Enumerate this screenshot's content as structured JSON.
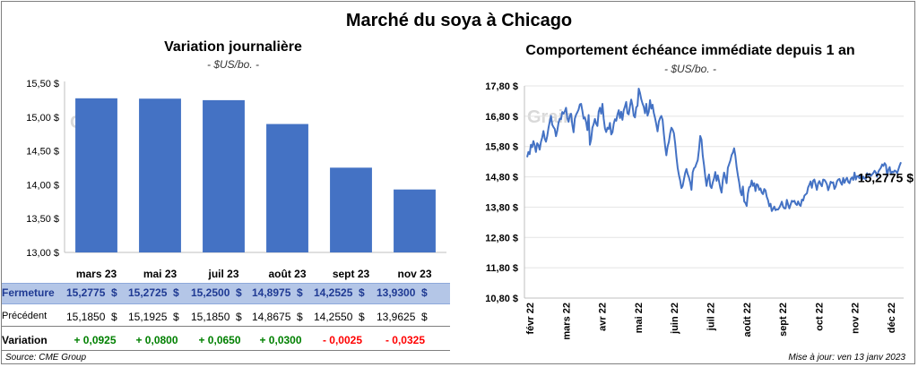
{
  "main_title": "Marché du soya à Chicago",
  "watermark": "Grain",
  "chart_data": [
    {
      "type": "bar",
      "title": "Variation journalière",
      "unit": "- $US/bo. -",
      "categories": [
        "mars 23",
        "mai 23",
        "juil 23",
        "août 23",
        "sept 23",
        "nov 23"
      ],
      "values": [
        15.2775,
        15.2725,
        15.25,
        14.8975,
        14.2525,
        13.93
      ],
      "ylim": [
        13.0,
        15.5
      ],
      "yticks": [
        "13,00 $",
        "13,50 $",
        "14,00 $",
        "14,50 $",
        "15,00 $",
        "15,50 $"
      ],
      "grid": false,
      "color": "#4472c4"
    },
    {
      "type": "line",
      "title": "Comportement  échéance immédiate depuis 1 an",
      "unit": "- $US/bo. -",
      "ylim": [
        10.8,
        17.8
      ],
      "yticks": [
        "10,80 $",
        "11,80 $",
        "12,80 $",
        "13,80 $",
        "14,80 $",
        "15,80 $",
        "16,80 $",
        "17,80 $"
      ],
      "xticks": [
        "févr 22",
        "mars 22",
        "avr 22",
        "mai 22",
        "juin 22",
        "juil 22",
        "août 22",
        "sept 22",
        "oct 22",
        "nov 22",
        "déc 22"
      ],
      "last_value_label": "15,2775 $",
      "color": "#4472c4",
      "values": [
        15.45,
        15.62,
        15.55,
        15.86,
        15.78,
        15.98,
        15.84,
        15.62,
        15.91,
        15.85,
        15.7,
        15.95,
        16.1,
        16.31,
        16.07,
        15.96,
        16.14,
        16.41,
        16.62,
        16.81,
        16.52,
        16.44,
        16.38,
        16.14,
        16.32,
        16.58,
        16.72,
        16.7,
        16.94,
        16.88,
        16.96,
        17.08,
        16.74,
        16.62,
        16.82,
        16.88,
        16.52,
        16.27,
        16.72,
        16.85,
        16.93,
        17.02,
        17.19,
        17.21,
        16.98,
        16.72,
        16.76,
        16.61,
        16.34,
        16.84,
        15.86,
        16.04,
        16.42,
        16.54,
        16.71,
        16.55,
        16.48,
        16.95,
        17.08,
        16.88,
        17.21,
        16.72,
        16.4,
        16.28,
        16.42,
        16.38,
        16.58,
        16.2,
        16.27,
        16.55,
        16.7,
        16.65,
        16.86,
        17.0,
        16.74,
        16.95,
        16.68,
        16.99,
        17.12,
        17.27,
        16.9,
        16.86,
        17.13,
        17.35,
        17.15,
        16.82,
        16.76,
        17.09,
        17.14,
        17.71,
        17.57,
        17.36,
        17.22,
        17.11,
        16.9,
        17.21,
        16.82,
        16.95,
        17.33,
        17.05,
        17.18,
        16.91,
        16.74,
        16.53,
        16.3,
        16.62,
        16.74,
        16.81,
        16.68,
        16.22,
        15.82,
        15.51,
        15.8,
        15.95,
        16.23,
        16.42,
        16.36,
        16.24,
        15.91,
        15.47,
        15.1,
        14.86,
        14.68,
        14.43,
        14.5,
        14.72,
        14.93,
        15.06,
        14.89,
        14.78,
        14.62,
        14.37,
        14.95,
        15.08,
        15.12,
        15.24,
        15.35,
        15.7,
        16.15,
        16.03,
        15.5,
        15.19,
        14.81,
        14.5,
        14.75,
        14.88,
        14.5,
        14.43,
        14.62,
        14.75,
        14.96,
        14.67,
        14.85,
        14.65,
        14.43,
        14.28,
        14.7,
        14.94,
        14.78,
        14.59,
        15.1,
        15.22,
        15.34,
        15.52,
        15.6,
        15.74,
        15.49,
        15.12,
        14.85,
        14.62,
        14.32,
        14.19,
        14.48,
        13.99,
        13.94,
        13.84,
        14.26,
        14.46,
        14.48,
        14.68,
        14.5,
        14.59,
        14.33,
        14.56,
        14.53,
        14.37,
        14.42,
        14.28,
        14.23,
        14.4,
        14.35,
        14.14,
        14.03,
        13.83,
        13.91,
        13.67,
        13.74,
        13.82,
        13.7,
        13.73,
        13.72,
        13.78,
        13.87,
        13.98,
        13.82,
        13.76,
        13.76,
        14.04,
        13.89,
        13.76,
        13.89,
        14.01,
        13.98,
        14.01,
        13.91,
        13.87,
        13.99,
        13.88,
        13.84,
        14.05,
        14.02,
        14.18,
        14.22,
        14.26,
        14.45,
        14.54,
        14.65,
        14.44,
        14.67,
        14.71,
        14.55,
        14.37,
        14.58,
        14.66,
        14.56,
        14.49,
        14.71,
        14.7,
        14.64,
        14.55,
        14.36,
        14.48,
        14.64,
        14.6,
        14.62,
        14.4,
        14.48,
        14.65,
        14.71,
        14.73,
        14.61,
        14.54,
        14.76,
        14.6,
        14.71,
        14.77,
        14.63,
        14.59,
        14.73,
        14.78,
        14.7,
        14.94,
        14.71,
        14.82,
        14.82,
        14.75,
        14.86,
        14.71,
        14.81,
        14.74,
        14.73,
        14.92,
        14.85,
        14.9,
        14.83,
        14.88,
        14.93,
        15.0,
        14.94,
        14.8,
        14.97,
        15.04,
        15.1,
        15.21,
        15.16,
        15.25,
        15.19,
        14.83,
        15.04,
        15.12,
        14.89,
        14.97,
        14.95,
        15.01,
        14.98,
        14.92,
        15.05,
        15.18,
        15.28
      ]
    }
  ],
  "table": {
    "rows": [
      {
        "label": "Fermeture",
        "values": [
          "15,2775",
          "15,2725",
          "15,2500",
          "14,8975",
          "14,2525",
          "13,9300"
        ],
        "suffix": "$"
      },
      {
        "label": "Précédent",
        "values": [
          "15,1850",
          "15,1925",
          "15,1850",
          "14,8675",
          "14,2550",
          "13,9625"
        ],
        "suffix": "$"
      },
      {
        "label": "Variation",
        "values": [
          "+ 0,0925",
          "+ 0,0800",
          "+ 0,0650",
          "+ 0,0300",
          "- 0,0025",
          "- 0,0325"
        ],
        "colors": [
          "#008000",
          "#008000",
          "#008000",
          "#008000",
          "#ff0000",
          "#ff0000"
        ]
      }
    ]
  },
  "footer": {
    "source": "Source: CME Group",
    "updated": "Mise à jour: ven 13 janv 2023"
  }
}
